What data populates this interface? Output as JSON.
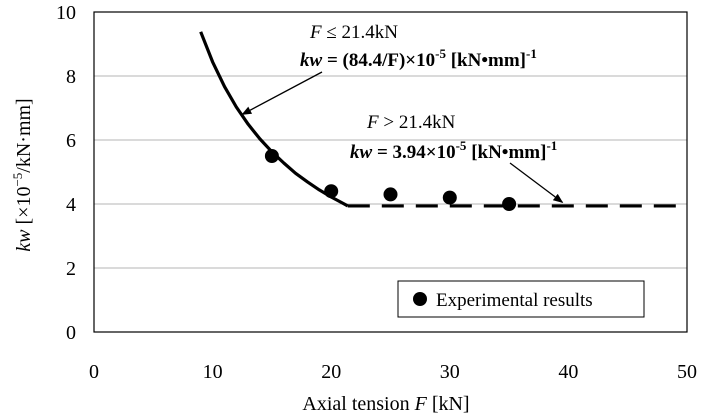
{
  "chart_data": {
    "type": "line",
    "xlabel": "Axial tension F [kN]",
    "xlabel_parts": {
      "text": "Axial tension ",
      "var": "F",
      "unit": "  [kN]"
    },
    "ylabel_parts": {
      "var": "kw",
      "unit_prefix": "  [×10",
      "exp": "−5",
      "unit_suffix": "/kN·mm]"
    },
    "xlim": [
      0,
      50
    ],
    "ylim": [
      0,
      10
    ],
    "x_ticks": [
      0,
      10,
      20,
      30,
      40,
      50
    ],
    "y_ticks": [
      0,
      2,
      4,
      6,
      8,
      10
    ],
    "grid": "horizontal",
    "legend_position": "bottom-right",
    "series": [
      {
        "name": "Experimental results",
        "style": "markers",
        "x": [
          15,
          20,
          25,
          30,
          35
        ],
        "y": [
          5.5,
          4.4,
          4.3,
          4.2,
          4.0
        ]
      }
    ],
    "model_curve": {
      "x": [
        9,
        10,
        11,
        12,
        13,
        14,
        15,
        16,
        17,
        18,
        19,
        20,
        21,
        21.4
      ],
      "y": [
        9.38,
        8.44,
        7.67,
        7.03,
        6.49,
        6.03,
        5.63,
        5.28,
        4.96,
        4.69,
        4.44,
        4.22,
        4.02,
        3.94
      ]
    },
    "model_constant": {
      "x": [
        21.4,
        50
      ],
      "y": [
        3.94,
        3.94
      ]
    },
    "annotations": [
      {
        "condition": {
          "var": "F",
          "rest": " ≤ 21.4kN"
        },
        "formula": {
          "var": "kw",
          "mid": " = (84.4/F)×10",
          "exp": "-5",
          "unit": " [kN•mm]",
          "exp2": "-1"
        },
        "arrow_target": [
          12.5,
          6.8
        ]
      },
      {
        "condition": {
          "var": "F",
          "rest": " > 21.4kN"
        },
        "formula": {
          "var": "kw",
          "mid": " = 3.94×10",
          "exp": "-5",
          "unit": " [kN•mm]",
          "exp2": "-1"
        },
        "arrow_target": [
          39.5,
          4.05
        ]
      }
    ]
  }
}
